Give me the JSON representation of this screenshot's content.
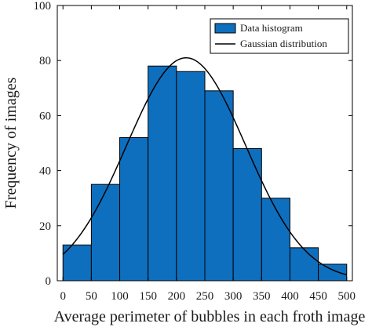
{
  "chart_data": {
    "type": "bar",
    "xlabel": "Average perimeter of bubbles in each froth image",
    "ylabel": "Frequency of images",
    "xlim": [
      -10,
      510
    ],
    "ylim": [
      0,
      100
    ],
    "xticks": [
      0,
      50,
      100,
      150,
      200,
      250,
      300,
      350,
      400,
      450,
      500
    ],
    "yticks": [
      0,
      20,
      40,
      60,
      80,
      100
    ],
    "bins": [
      {
        "start": 0,
        "end": 50,
        "value": 13
      },
      {
        "start": 50,
        "end": 100,
        "value": 35
      },
      {
        "start": 100,
        "end": 150,
        "value": 52
      },
      {
        "start": 150,
        "end": 200,
        "value": 78
      },
      {
        "start": 200,
        "end": 250,
        "value": 76
      },
      {
        "start": 250,
        "end": 300,
        "value": 69
      },
      {
        "start": 300,
        "end": 350,
        "value": 48
      },
      {
        "start": 350,
        "end": 400,
        "value": 30
      },
      {
        "start": 400,
        "end": 450,
        "value": 12
      },
      {
        "start": 450,
        "end": 500,
        "value": 6
      }
    ],
    "series": [
      {
        "name": "Data histogram",
        "kind": "bar",
        "color": "#0e6fbe"
      },
      {
        "name": "Gaussian distribution",
        "kind": "line",
        "color": "#000000",
        "curve": {
          "mean": 217,
          "sigma": 105,
          "peak": 81,
          "x_range": [
            0,
            500
          ]
        }
      }
    ],
    "legend": {
      "position": "top-right"
    },
    "grid": false
  }
}
